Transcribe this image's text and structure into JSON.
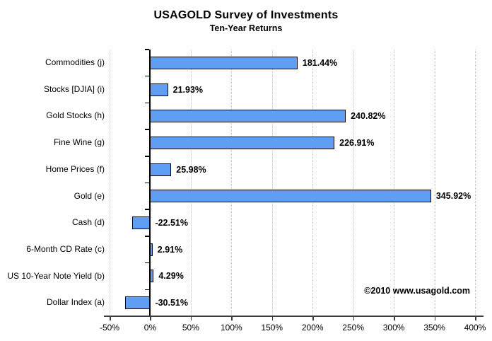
{
  "header": {
    "title": "USAGOLD Survey of Investments",
    "subtitle": "Ten-Year Returns"
  },
  "copyright": "©2010 www.usagold.com",
  "chart_data": {
    "type": "bar",
    "orientation": "horizontal",
    "title": "USAGOLD Survey of Investments",
    "subtitle": "Ten-Year Returns",
    "categories": [
      "Commodities (j)",
      "Stocks [DJIA] (i)",
      "Gold Stocks (h)",
      "Fine Wine (g)",
      "Home Prices (f)",
      "Gold (e)",
      "Cash (d)",
      "6-Month CD Rate (c)",
      "US 10-Year Note Yield (b)",
      "Dollar Index (a)"
    ],
    "values": [
      181.44,
      21.93,
      240.82,
      226.91,
      25.98,
      345.92,
      -22.51,
      2.91,
      4.29,
      -30.51
    ],
    "value_labels": [
      "181.44%",
      "21.93%",
      "240.82%",
      "226.91%",
      "25.98%",
      "345.92%",
      "-22.51%",
      "2.91%",
      "4.29%",
      "-30.51%"
    ],
    "xlabel": "",
    "ylabel": "",
    "xlim": [
      -50,
      400
    ],
    "x_tick_values": [
      -50,
      0,
      50,
      100,
      150,
      200,
      250,
      300,
      350,
      400
    ],
    "x_tick_labels": [
      "-50%",
      "0%",
      "50%",
      "100%",
      "150%",
      "200%",
      "250%",
      "300%",
      "350%",
      "400%"
    ],
    "grid": "vertical-dotted",
    "legend": "none",
    "colors": {
      "bar_fill": "#5f9ef2",
      "bar_border": "#000000",
      "gridline": "#c4c4c4",
      "axis": "#3c3c3c",
      "text": "#000000",
      "background": "#ffffff"
    }
  }
}
